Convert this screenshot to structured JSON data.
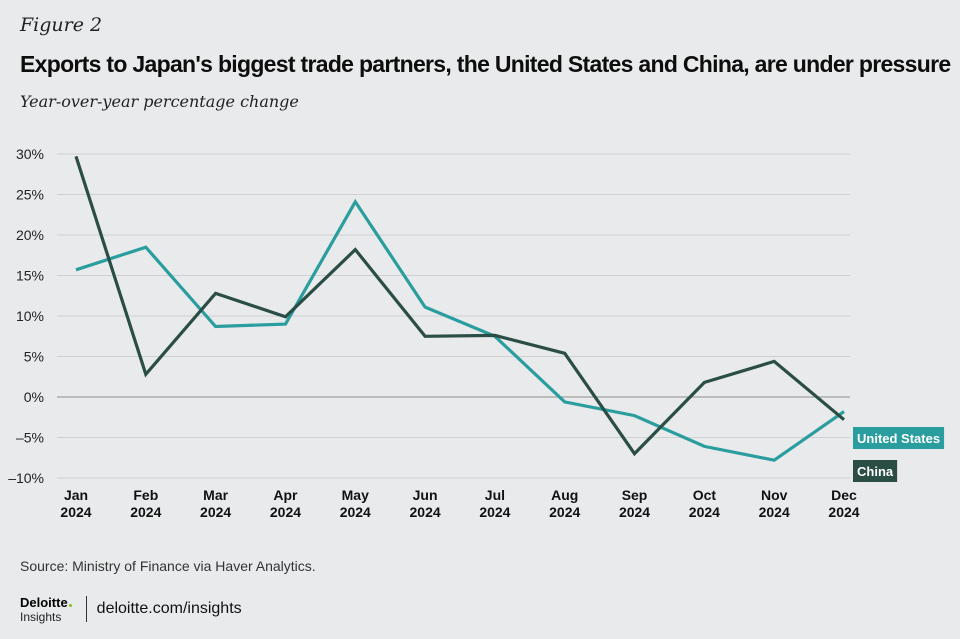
{
  "figure_label": "Figure 2",
  "chart_data": {
    "type": "line",
    "title": "Exports to Japan's biggest trade partners, the United States and China, are under pressure",
    "subtitle": "Year-over-year percentage change",
    "categories": [
      [
        "Jan",
        "2024"
      ],
      [
        "Feb",
        "2024"
      ],
      [
        "Mar",
        "2024"
      ],
      [
        "Apr",
        "2024"
      ],
      [
        "May",
        "2024"
      ],
      [
        "Jun",
        "2024"
      ],
      [
        "Jul",
        "2024"
      ],
      [
        "Aug",
        "2024"
      ],
      [
        "Sep",
        "2024"
      ],
      [
        "Oct",
        "2024"
      ],
      [
        "Nov",
        "2024"
      ],
      [
        "Dec",
        "2024"
      ]
    ],
    "ylim": [
      -10,
      30
    ],
    "yticks": [
      30,
      25,
      20,
      15,
      10,
      5,
      0,
      -5,
      -10
    ],
    "ytick_labels": [
      "30%",
      "25%",
      "20%",
      "15%",
      "10%",
      "5%",
      "0%",
      "–5%",
      "–10%"
    ],
    "grid": true,
    "series": [
      {
        "name": "United States",
        "color": "#2a9d9f",
        "values": [
          15.7,
          18.5,
          8.7,
          9.0,
          24.1,
          11.1,
          7.5,
          -0.6,
          -2.3,
          -6.1,
          -7.8,
          -1.8
        ]
      },
      {
        "name": "China",
        "color": "#2a4d45",
        "values": [
          29.7,
          2.8,
          12.8,
          9.9,
          18.2,
          7.5,
          7.6,
          5.4,
          -7.0,
          1.8,
          4.4,
          -2.8
        ]
      }
    ]
  },
  "source": "Source: Ministry of Finance via Haver Analytics.",
  "footer": {
    "brand": "Deloitte",
    "brand_sub": "Insights",
    "url": "deloitte.com/insights"
  }
}
